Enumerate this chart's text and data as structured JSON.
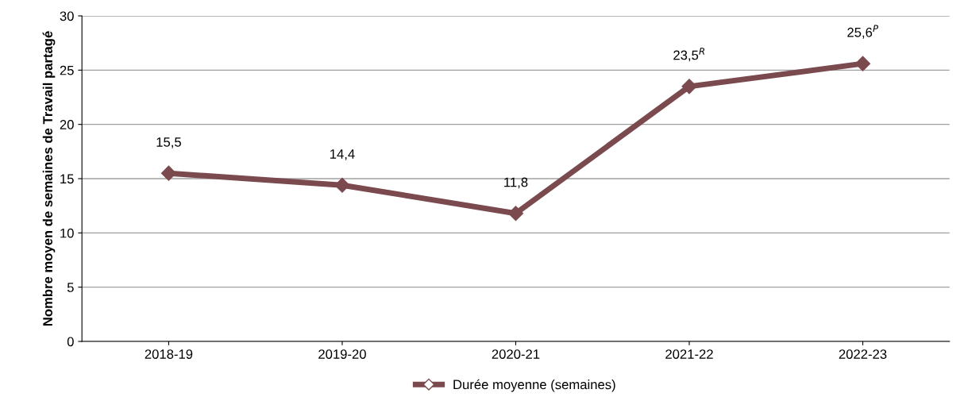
{
  "chart_data": {
    "type": "line",
    "ylabel": "Nombre moyen de semaines de Travail partagé",
    "categories": [
      "2018-19",
      "2019-20",
      "2020-21",
      "2021-22",
      "2022-23"
    ],
    "series": [
      {
        "name": "Durée moyenne (semaines)",
        "color": "#7b4a4f",
        "values": [
          15.5,
          14.4,
          11.8,
          23.5,
          25.6
        ],
        "value_labels": [
          "15,5",
          "14,4",
          "11,8",
          "23,5$^{R}$",
          "25,6$^{P}$"
        ]
      }
    ],
    "ylim": [
      0,
      30
    ],
    "yticks": [
      0,
      5,
      10,
      15,
      20,
      25,
      30
    ],
    "grid": "y",
    "legend": "bottom",
    "marker": "diamond",
    "line_style": "solid"
  }
}
